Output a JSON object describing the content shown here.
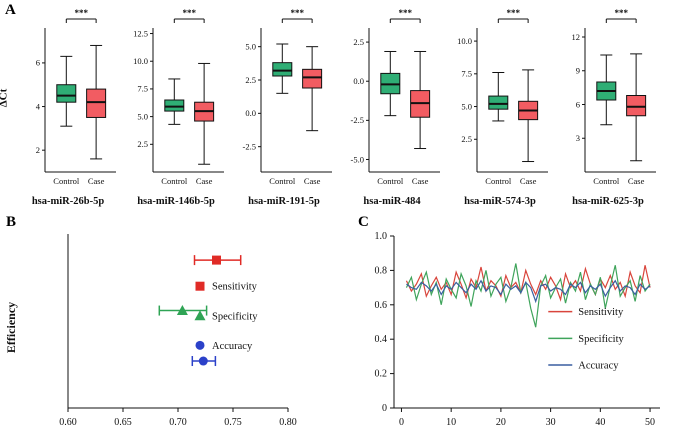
{
  "figure": {
    "panel_a_label": "A",
    "panel_b_label": "B",
    "panel_c_label": "C"
  },
  "chart_data": {
    "panel_A": {
      "type": "box",
      "ylabel": "ΔCt",
      "groups": [
        "Control",
        "Case"
      ],
      "colors": {
        "control": "#2fae75",
        "case": "#f25c62"
      },
      "plots": [
        {
          "title": "hsa-miR-26b-5p",
          "sig": "***",
          "ylim": [
            1.0,
            7.6
          ],
          "yticks": [
            "2",
            "4",
            "6"
          ],
          "control": [
            3.1,
            4.2,
            4.5,
            5.0,
            6.3
          ],
          "case": [
            1.6,
            3.5,
            4.2,
            4.8,
            6.8
          ]
        },
        {
          "title": "hsa-miR-146b-5p",
          "sig": "***",
          "ylim": [
            0,
            13
          ],
          "yticks": [
            "2.5",
            "5.0",
            "7.5",
            "10.0",
            "12.5"
          ],
          "control": [
            4.3,
            5.5,
            5.9,
            6.5,
            8.4
          ],
          "case": [
            0.7,
            4.6,
            5.5,
            6.3,
            9.8
          ]
        },
        {
          "title": "hsa-miR-191-5p",
          "sig": "***",
          "ylim": [
            -4.4,
            6.4
          ],
          "yticks": [
            "-2.5",
            "0.0",
            "2.5",
            "5.0"
          ],
          "control": [
            1.5,
            2.8,
            3.2,
            3.8,
            5.2
          ],
          "case": [
            -1.3,
            1.9,
            2.7,
            3.3,
            5.0
          ]
        },
        {
          "title": "hsa-miR-484",
          "sig": "***",
          "ylim": [
            -5.8,
            3.4
          ],
          "yticks": [
            "-5.0",
            "-2.5",
            "0.0",
            "2.5"
          ],
          "control": [
            -2.2,
            -0.8,
            -0.2,
            0.5,
            1.9
          ],
          "case": [
            -4.3,
            -2.3,
            -1.4,
            -0.6,
            1.9
          ]
        },
        {
          "title": "hsa-miR-574-3p",
          "sig": "***",
          "ylim": [
            0,
            11
          ],
          "yticks": [
            "2.5",
            "5.0",
            "7.5",
            "10.0"
          ],
          "control": [
            3.9,
            4.8,
            5.2,
            5.8,
            7.6
          ],
          "case": [
            0.8,
            4.0,
            4.7,
            5.4,
            7.8
          ]
        },
        {
          "title": "hsa-miR-625-3p",
          "sig": "***",
          "ylim": [
            0,
            12.8
          ],
          "yticks": [
            "3",
            "6",
            "9",
            "12"
          ],
          "control": [
            4.2,
            6.4,
            7.2,
            8.0,
            10.4
          ],
          "case": [
            1.0,
            5.0,
            5.8,
            6.8,
            10.5
          ]
        }
      ]
    },
    "panel_B": {
      "type": "scatter",
      "ylabel": "Efficiency",
      "xlim": [
        0.6,
        0.8
      ],
      "xticks": [
        "0.60",
        "0.65",
        "0.70",
        "0.75",
        "0.80"
      ],
      "series": [
        {
          "name": "Sensitivity",
          "marker": "square",
          "color": "#e02b26",
          "value": 0.735,
          "ci": [
            0.715,
            0.757
          ]
        },
        {
          "name": "Specificity",
          "marker": "triangle",
          "color": "#2fa455",
          "value": 0.704,
          "ci": [
            0.683,
            0.726
          ]
        },
        {
          "name": "Accuracy",
          "marker": "circle",
          "color": "#2b41c9",
          "value": 0.723,
          "ci": [
            0.713,
            0.734
          ]
        }
      ]
    },
    "panel_C": {
      "type": "line",
      "xlim": [
        -1.5,
        52
      ],
      "xticks": [
        "0",
        "10",
        "20",
        "30",
        "40",
        "50"
      ],
      "ylim": [
        0,
        1.0
      ],
      "yticks": [
        "0",
        "0.2",
        "0.4",
        "0.6",
        "0.8",
        "1.0"
      ],
      "series": [
        {
          "name": "Sensitivity",
          "color": "#d9453c",
          "values": [
            0.74,
            0.68,
            0.72,
            0.78,
            0.65,
            0.71,
            0.76,
            0.69,
            0.73,
            0.66,
            0.79,
            0.72,
            0.64,
            0.75,
            0.7,
            0.82,
            0.68,
            0.74,
            0.71,
            0.65,
            0.77,
            0.7,
            0.73,
            0.67,
            0.8,
            0.72,
            0.66,
            0.74,
            0.69,
            0.76,
            0.71,
            0.63,
            0.78,
            0.7,
            0.74,
            0.68,
            0.81,
            0.72,
            0.66,
            0.75,
            0.7,
            0.77,
            0.69,
            0.73,
            0.65,
            0.79,
            0.71,
            0.67,
            0.83,
            0.7
          ]
        },
        {
          "name": "Specificity",
          "color": "#3fa45b",
          "values": [
            0.7,
            0.76,
            0.63,
            0.72,
            0.79,
            0.66,
            0.73,
            0.6,
            0.75,
            0.69,
            0.64,
            0.78,
            0.71,
            0.59,
            0.74,
            0.68,
            0.8,
            0.65,
            0.72,
            0.76,
            0.62,
            0.7,
            0.84,
            0.67,
            0.73,
            0.58,
            0.47,
            0.71,
            0.77,
            0.64,
            0.7,
            0.75,
            0.61,
            0.73,
            0.68,
            0.79,
            0.63,
            0.72,
            0.66,
            0.76,
            0.58,
            0.71,
            0.83,
            0.65,
            0.7,
            0.74,
            0.62,
            0.77,
            0.68,
            0.72
          ]
        },
        {
          "name": "Accuracy",
          "color": "#3a5fa0",
          "values": [
            0.72,
            0.7,
            0.69,
            0.73,
            0.71,
            0.68,
            0.72,
            0.66,
            0.71,
            0.69,
            0.73,
            0.7,
            0.67,
            0.72,
            0.69,
            0.74,
            0.68,
            0.71,
            0.7,
            0.66,
            0.72,
            0.69,
            0.71,
            0.67,
            0.73,
            0.7,
            0.62,
            0.71,
            0.72,
            0.68,
            0.7,
            0.69,
            0.66,
            0.72,
            0.7,
            0.73,
            0.67,
            0.71,
            0.69,
            0.72,
            0.65,
            0.7,
            0.74,
            0.68,
            0.71,
            0.7,
            0.66,
            0.72,
            0.69,
            0.71
          ]
        }
      ]
    }
  }
}
